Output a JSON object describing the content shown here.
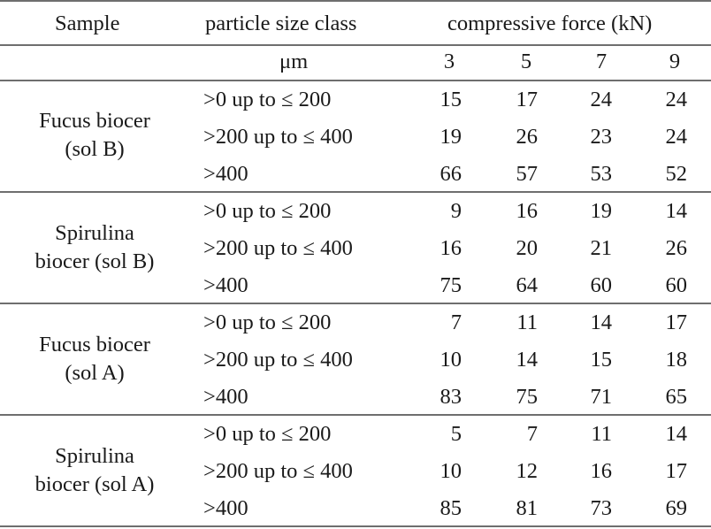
{
  "header": {
    "col_sample": "Sample",
    "col_size": "particle size class",
    "col_force": "compressive force (kN)",
    "unit_size": "μm",
    "forces": [
      "3",
      "5",
      "7",
      "9"
    ]
  },
  "groups": [
    {
      "sample_line1": "Fucus biocer",
      "sample_line2": "(sol B)",
      "rows": [
        {
          "size": ">0 up to ≤ 200",
          "values": [
            "15",
            "17",
            "24",
            "24"
          ]
        },
        {
          "size": ">200 up to ≤ 400",
          "values": [
            "19",
            "26",
            "23",
            "24"
          ]
        },
        {
          "size": ">400",
          "values": [
            "66",
            "57",
            "53",
            "52"
          ]
        }
      ]
    },
    {
      "sample_line1": "Spirulina",
      "sample_line2": "biocer (sol B)",
      "rows": [
        {
          "size": ">0 up to ≤ 200",
          "values": [
            "9",
            "16",
            "19",
            "14"
          ]
        },
        {
          "size": ">200 up to ≤ 400",
          "values": [
            "16",
            "20",
            "21",
            "26"
          ]
        },
        {
          "size": ">400",
          "values": [
            "75",
            "64",
            "60",
            "60"
          ]
        }
      ]
    },
    {
      "sample_line1": "Fucus biocer",
      "sample_line2": "(sol A)",
      "rows": [
        {
          "size": ">0 up to ≤ 200",
          "values": [
            "7",
            "11",
            "14",
            "17"
          ]
        },
        {
          "size": ">200 up to ≤ 400",
          "values": [
            "10",
            "14",
            "15",
            "18"
          ]
        },
        {
          "size": ">400",
          "values": [
            "83",
            "75",
            "71",
            "65"
          ]
        }
      ]
    },
    {
      "sample_line1": "Spirulina",
      "sample_line2": "biocer (sol A)",
      "rows": [
        {
          "size": ">0 up to ≤ 200",
          "values": [
            "5",
            "7",
            "11",
            "14"
          ]
        },
        {
          "size": ">200 up to ≤ 400",
          "values": [
            "10",
            "12",
            "16",
            "17"
          ]
        },
        {
          "size": ">400",
          "values": [
            "85",
            "81",
            "73",
            "69"
          ]
        }
      ]
    }
  ]
}
